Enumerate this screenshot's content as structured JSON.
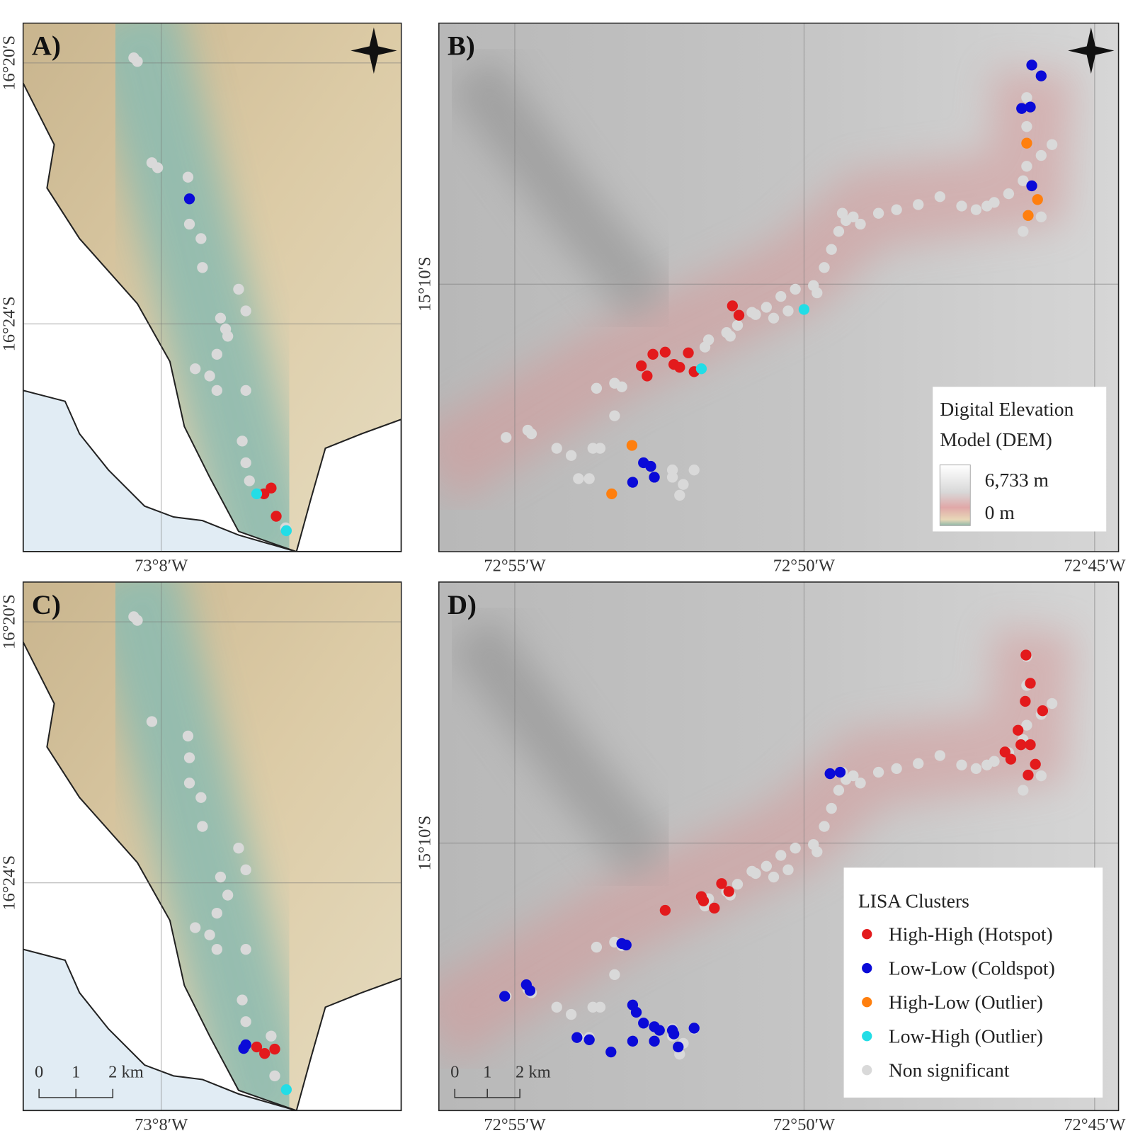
{
  "panels": [
    {
      "label": "A)",
      "lat_labels": [
        "16°20′S",
        "16°24′S"
      ],
      "lon_labels": [
        "73°8′W"
      ]
    },
    {
      "label": "B)",
      "lat_labels": [
        "15°10′S"
      ],
      "lon_labels": [
        "72°55′W",
        "72°50′W",
        "72°45′W"
      ]
    },
    {
      "label": "C)",
      "lat_labels": [
        "16°20′S",
        "16°24′S"
      ],
      "lon_labels": [
        "73°8′W"
      ]
    },
    {
      "label": "D)",
      "lat_labels": [
        "15°10′S"
      ],
      "lon_labels": [
        "72°55′W",
        "72°50′W",
        "72°45′W"
      ]
    }
  ],
  "legend_dem": {
    "title": [
      "Digital Elevation",
      "Model (DEM)"
    ],
    "max": "6,733 m",
    "min": "0 m"
  },
  "legend_lisa": {
    "title": "LISA Clusters",
    "items": [
      {
        "label": "High-High (Hotspot)",
        "color": "#e31a1c"
      },
      {
        "label": "Low-Low (Coldspot)",
        "color": "#0a0ad8"
      },
      {
        "label": "High-Low (Outlier)",
        "color": "#ff7f0e"
      },
      {
        "label": "Low-High (Outlier)",
        "color": "#22dde6"
      },
      {
        "label": "Non significant",
        "color": "#d9d9d9"
      }
    ]
  },
  "scale_bar": {
    "labels": [
      "0",
      "1",
      "2 km"
    ]
  }
}
